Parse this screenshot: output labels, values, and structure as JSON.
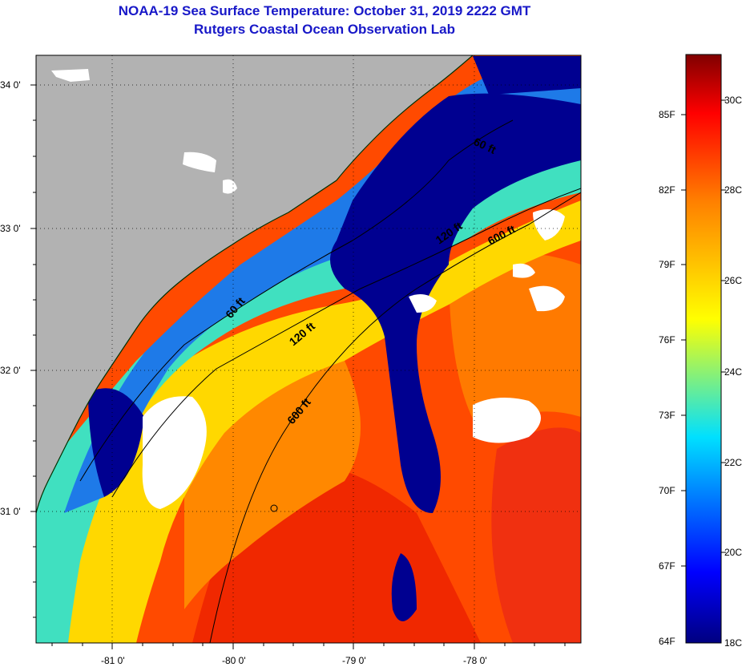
{
  "header": {
    "title": "NOAA-19 Sea Surface Temperature:  October 31, 2019 2222 GMT",
    "subtitle": "Rutgers Coastal Ocean Observation Lab"
  },
  "map": {
    "lat_labels": [
      "34 0'",
      "33 0'",
      "32 0'",
      "31 0'"
    ],
    "lon_labels": [
      "-81 0'",
      "-80 0'",
      "-79 0'",
      "-78 0'"
    ],
    "contours": [
      "60 ft",
      "120 ft",
      "600 ft",
      "60 ft",
      "120 ft",
      "600 ft"
    ]
  },
  "colorbar": {
    "fahrenheit": [
      "85F",
      "82F",
      "79F",
      "76F",
      "73F",
      "70F",
      "67F",
      "64F"
    ],
    "celsius": [
      "30C",
      "28C",
      "26C",
      "24C",
      "22C",
      "20C",
      "18C"
    ],
    "colors": {
      "min": "#000080",
      "blue": "#0000ff",
      "cyan": "#00e0ff",
      "yellow": "#ffff00",
      "orange": "#ff8000",
      "red": "#ff0000",
      "max": "#800000",
      "land": "#b2b2b2",
      "cloud": "#ffffff"
    }
  }
}
